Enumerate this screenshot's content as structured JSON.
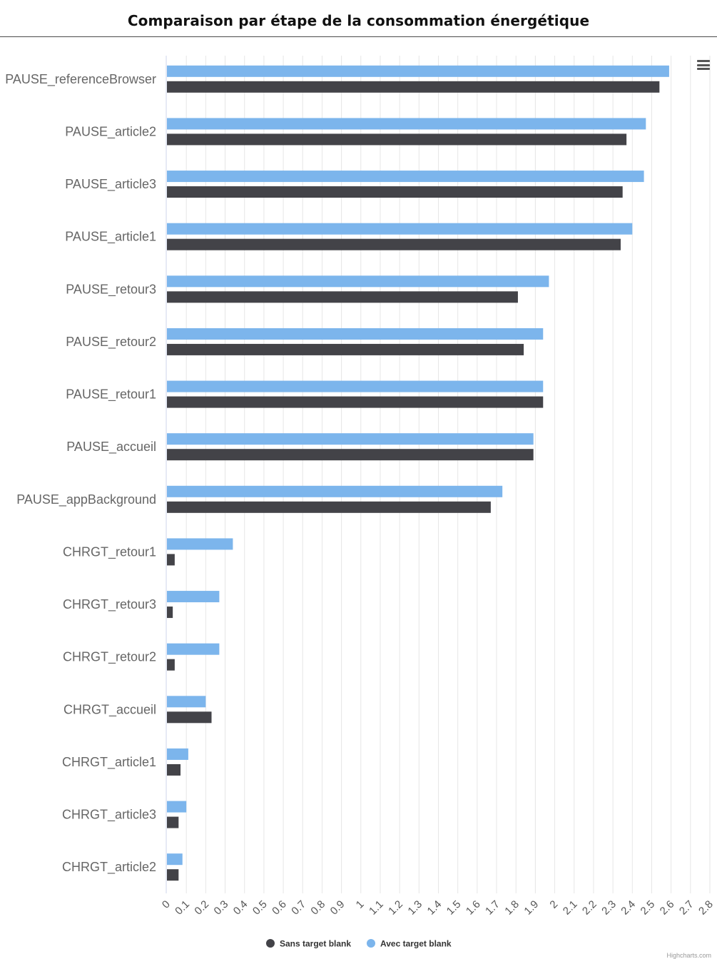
{
  "chart_data": {
    "type": "bar",
    "orientation": "horizontal",
    "title": "Comparaison par étape de la consommation énergétique",
    "categories": [
      "PAUSE_referenceBrowser",
      "PAUSE_article2",
      "PAUSE_article3",
      "PAUSE_article1",
      "PAUSE_retour3",
      "PAUSE_retour2",
      "PAUSE_retour1",
      "PAUSE_accueil",
      "PAUSE_appBackground",
      "CHRGT_retour1",
      "CHRGT_retour3",
      "CHRGT_retour2",
      "CHRGT_accueil",
      "CHRGT_article1",
      "CHRGT_article3",
      "CHRGT_article2"
    ],
    "series": [
      {
        "name": "Avec target blank",
        "color": "#7cb5ec",
        "values": [
          2.59,
          2.47,
          2.46,
          2.4,
          1.97,
          1.94,
          1.94,
          1.89,
          1.73,
          0.34,
          0.27,
          0.27,
          0.2,
          0.11,
          0.1,
          0.08
        ]
      },
      {
        "name": "Sans target blank",
        "color": "#434348",
        "values": [
          2.54,
          2.37,
          2.35,
          2.34,
          1.81,
          1.84,
          1.94,
          1.89,
          1.67,
          0.04,
          0.03,
          0.04,
          0.23,
          0.07,
          0.06,
          0.06
        ]
      }
    ],
    "xlim": [
      0,
      2.8
    ],
    "ticks": [
      "0",
      "0.1",
      "0.2",
      "0.3",
      "0.4",
      "0.5",
      "0.6",
      "0.7",
      "0.8",
      "0.9",
      "1",
      "1.1",
      "1.2",
      "1.3",
      "1.4",
      "1.5",
      "1.6",
      "1.7",
      "1.8",
      "1.9",
      "2",
      "2.1",
      "2.2",
      "2.3",
      "2.4",
      "2.5",
      "2.6",
      "2.7",
      "2.8"
    ],
    "grid": true,
    "legend": {
      "position": "bottom",
      "items": [
        {
          "name": "Sans target blank",
          "color": "#434348"
        },
        {
          "name": "Avec target blank",
          "color": "#7cb5ec"
        }
      ]
    }
  },
  "menu": {
    "icon": "hamburger-menu-icon"
  },
  "credits": "Highcharts.com"
}
